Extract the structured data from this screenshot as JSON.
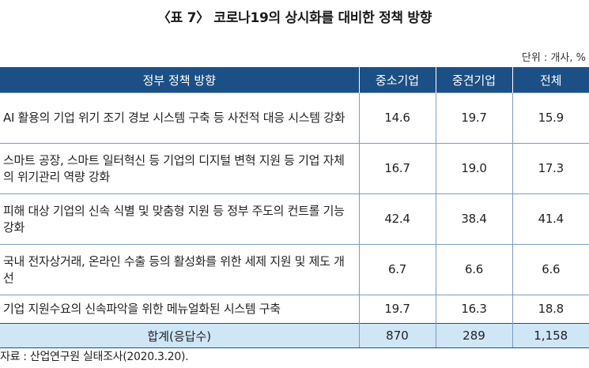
{
  "title": "〈표 7〉 코로나19의 상시화를 대비한 정책 방향",
  "unit": "단위 : 개사, %",
  "table": {
    "headers": [
      "정부 정책 방향",
      "중소기업",
      "중견기업",
      "전체"
    ],
    "rows": [
      {
        "label": "AI 활용의 기업 위기 조기 경보 시스템 구축 등 사전적 대응 시스템 강화",
        "sme": "14.6",
        "mid": "19.7",
        "total": "15.9"
      },
      {
        "label": "스마트 공장, 스마트 일터혁신 등 기업의 디지털 변혁 지원 등 기업 자체의 위기관리 역량 강화",
        "sme": "16.7",
        "mid": "19.0",
        "total": "17.3"
      },
      {
        "label": "피해 대상 기업의 신속 식별 및 맞춤형 지원 등 정부 주도의 컨트롤 기능 강화",
        "sme": "42.4",
        "mid": "38.4",
        "total": "41.4"
      },
      {
        "label": "국내 전자상거래, 온라인 수출 등의 활성화를 위한 세제 지원 및 제도 개선",
        "sme": "6.7",
        "mid": "6.6",
        "total": "6.6"
      },
      {
        "label": "기업 지원수요의 신속파악을 위한 메뉴얼화된 시스템 구축",
        "sme": "19.7",
        "mid": "16.3",
        "total": "18.8"
      }
    ],
    "footer": {
      "label": "합계(응답수)",
      "sme": "870",
      "mid": "289",
      "total": "1,158"
    }
  },
  "source": "자료 : 산업연구원 실태조사(2020.3.20).",
  "colors": {
    "header_bg": "#1c4f86",
    "footer_bg": "#cfe6f6",
    "rule": "#7a9cc0"
  }
}
